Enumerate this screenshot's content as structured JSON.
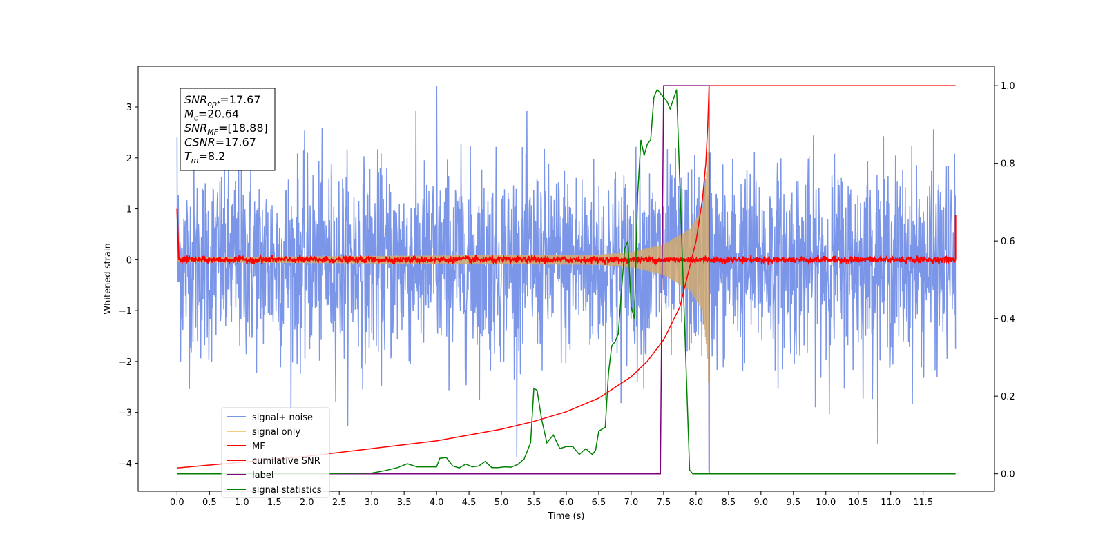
{
  "chart_data": {
    "type": "line",
    "xlabel": "Time (s)",
    "ylabel": "Whitened strain",
    "xlim": [
      -0.6,
      12.6
    ],
    "ylim": [
      -4.55,
      3.8
    ],
    "y2lim": [
      -0.045,
      1.05
    ],
    "x_ticks": [
      "0.0",
      "0.5",
      "1.0",
      "1.5",
      "2.0",
      "2.5",
      "3.0",
      "3.5",
      "4.0",
      "4.5",
      "5.0",
      "5.5",
      "6.0",
      "6.5",
      "7.0",
      "7.5",
      "8.0",
      "8.5",
      "9.0",
      "9.5",
      "10.0",
      "10.5",
      "11.0",
      "11.5"
    ],
    "y_ticks": [
      "3",
      "2",
      "1",
      "0",
      "−1",
      "−2",
      "−3",
      "−4"
    ],
    "y2_ticks": [
      "1.0",
      "0.8",
      "0.6",
      "0.4",
      "0.2",
      "0.0"
    ],
    "annotation": [
      {
        "sym": "SNR",
        "sub": "opt",
        "rest": "=17.67"
      },
      {
        "sym": "M",
        "sub": "c",
        "rest": "=20.64"
      },
      {
        "sym": "SNR",
        "sub": "MF",
        "rest": "=[18.88]"
      },
      {
        "sym": "CSNR",
        "sub": "",
        "rest": "=17.67"
      },
      {
        "sym": "T",
        "sub": "m",
        "rest": "=8.2"
      }
    ],
    "legend": {
      "placement": "lower-left",
      "entries": [
        {
          "label": "signal+ noise",
          "color": "#7b96e8"
        },
        {
          "label": "signal only",
          "color": "#f5cd7e"
        },
        {
          "label": "MF",
          "color": "#ff0000"
        },
        {
          "label": "cumilative SNR",
          "color": "#ff0000"
        },
        {
          "label": "label",
          "color": "#800080"
        },
        {
          "label": "signal statistics",
          "color": "#008000"
        }
      ]
    },
    "series": [
      {
        "label_ref": 0,
        "axis": "left",
        "color": "#7b96e8",
        "x_range": [
          0.0,
          12.0
        ],
        "envelope": {
          "mean": -0.05,
          "std": 0.95,
          "min": -4.15,
          "max": 3.42
        },
        "x": [
          0.0,
          4.0,
          7.75,
          8.2,
          8.22
        ],
        "y": [
          2.4,
          3.42,
          1.0,
          -4.15,
          2.1
        ]
      },
      {
        "label_ref": 1,
        "axis": "left",
        "color": "#d2aa6e",
        "x": [
          0.0,
          6.5,
          7.0,
          7.5,
          7.9,
          8.1,
          8.18,
          8.2
        ],
        "amplitude": [
          0.05,
          0.1,
          0.15,
          0.3,
          0.6,
          1.0,
          2.0,
          3.0
        ]
      },
      {
        "label_ref": 2,
        "axis": "left",
        "color": "#ff0000",
        "x": [
          0.0,
          0.02,
          12.0
        ],
        "y": [
          1.0,
          0.0,
          0.88
        ],
        "noise_std": 0.03
      },
      {
        "label_ref": 3,
        "axis": "right",
        "color": "#ff0000",
        "x": [
          0.0,
          1.0,
          2.0,
          3.0,
          4.0,
          5.0,
          5.5,
          6.0,
          6.5,
          7.0,
          7.25,
          7.5,
          7.75,
          8.0,
          8.1,
          8.15,
          8.18,
          8.2,
          12.0
        ],
        "y": [
          0.015,
          0.03,
          0.045,
          0.065,
          0.085,
          0.115,
          0.135,
          0.16,
          0.195,
          0.25,
          0.29,
          0.345,
          0.43,
          0.6,
          0.71,
          0.8,
          0.9,
          1.0,
          1.0
        ]
      },
      {
        "label_ref": 4,
        "axis": "right",
        "color": "#800080",
        "x": [
          0.0,
          7.45,
          7.5,
          8.2,
          8.2,
          12.0
        ],
        "y": [
          0.0,
          0.0,
          1.0,
          1.0,
          0.0,
          0.0
        ]
      },
      {
        "label_ref": 5,
        "axis": "right",
        "color": "#008000",
        "x": [
          0.0,
          1.0,
          2.0,
          2.5,
          3.0,
          3.2,
          3.4,
          3.55,
          3.7,
          3.85,
          4.0,
          4.05,
          4.15,
          4.25,
          4.35,
          4.45,
          4.55,
          4.65,
          4.75,
          4.85,
          4.95,
          5.05,
          5.15,
          5.25,
          5.35,
          5.45,
          5.5,
          5.55,
          5.62,
          5.7,
          5.8,
          5.9,
          6.0,
          6.1,
          6.2,
          6.3,
          6.4,
          6.45,
          6.5,
          6.6,
          6.65,
          6.7,
          6.75,
          6.8,
          6.9,
          6.95,
          7.0,
          7.05,
          7.1,
          7.15,
          7.2,
          7.25,
          7.3,
          7.35,
          7.4,
          7.45,
          7.5,
          7.55,
          7.6,
          7.7,
          7.8,
          7.9,
          7.95,
          8.0,
          8.05,
          8.1,
          8.15,
          8.2,
          8.25,
          8.3,
          12.0
        ],
        "y": [
          0.0,
          0.0,
          0.0,
          0.001,
          0.002,
          0.008,
          0.016,
          0.026,
          0.018,
          0.018,
          0.018,
          0.04,
          0.042,
          0.02,
          0.015,
          0.025,
          0.018,
          0.02,
          0.032,
          0.016,
          0.016,
          0.018,
          0.017,
          0.024,
          0.038,
          0.08,
          0.22,
          0.215,
          0.14,
          0.08,
          0.1,
          0.065,
          0.07,
          0.07,
          0.05,
          0.065,
          0.05,
          0.06,
          0.11,
          0.12,
          0.26,
          0.33,
          0.34,
          0.36,
          0.58,
          0.6,
          0.43,
          0.4,
          0.72,
          0.86,
          0.82,
          0.85,
          0.86,
          0.97,
          0.99,
          0.98,
          0.97,
          0.96,
          0.94,
          0.99,
          0.5,
          0.01,
          0.0,
          0.0,
          0.0,
          0.0,
          0.0,
          0.0,
          0.0,
          0.0,
          0.0
        ]
      }
    ]
  }
}
